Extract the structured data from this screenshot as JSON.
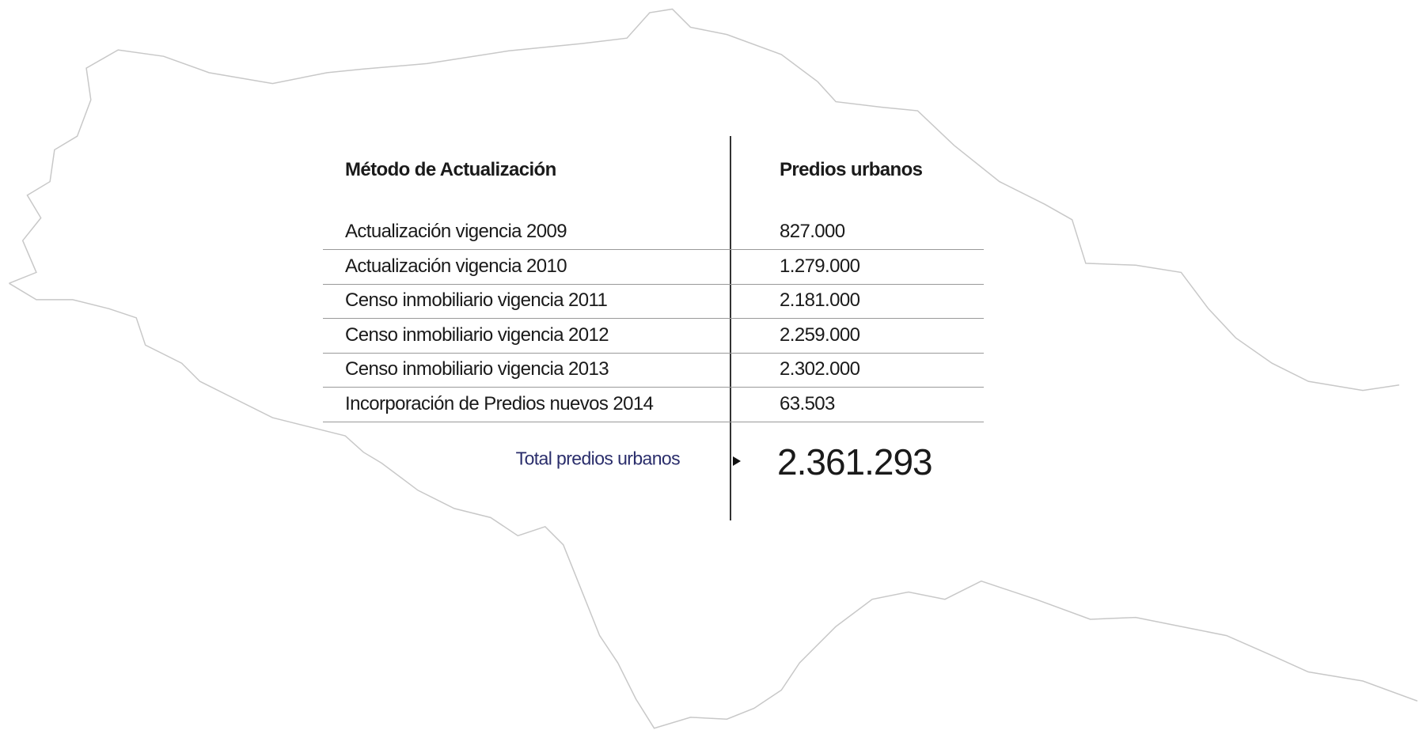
{
  "table": {
    "header": [
      "Método de Actualización",
      "Predios urbanos"
    ],
    "rows": [
      [
        "Actualización vigencia 2009",
        "827.000"
      ],
      [
        "Actualización vigencia 2010",
        "1.279.000"
      ],
      [
        "Censo inmobiliario vigencia 2011",
        "2.181.000"
      ],
      [
        "Censo inmobiliario vigencia 2012",
        "2.259.000"
      ],
      [
        "Censo inmobiliario vigencia 2013",
        "2.302.000"
      ],
      [
        "Incorporación de Predios nuevos 2014",
        "63.503"
      ]
    ],
    "total": {
      "label": "Total predios urbanos",
      "value": "2.361.293"
    }
  }
}
